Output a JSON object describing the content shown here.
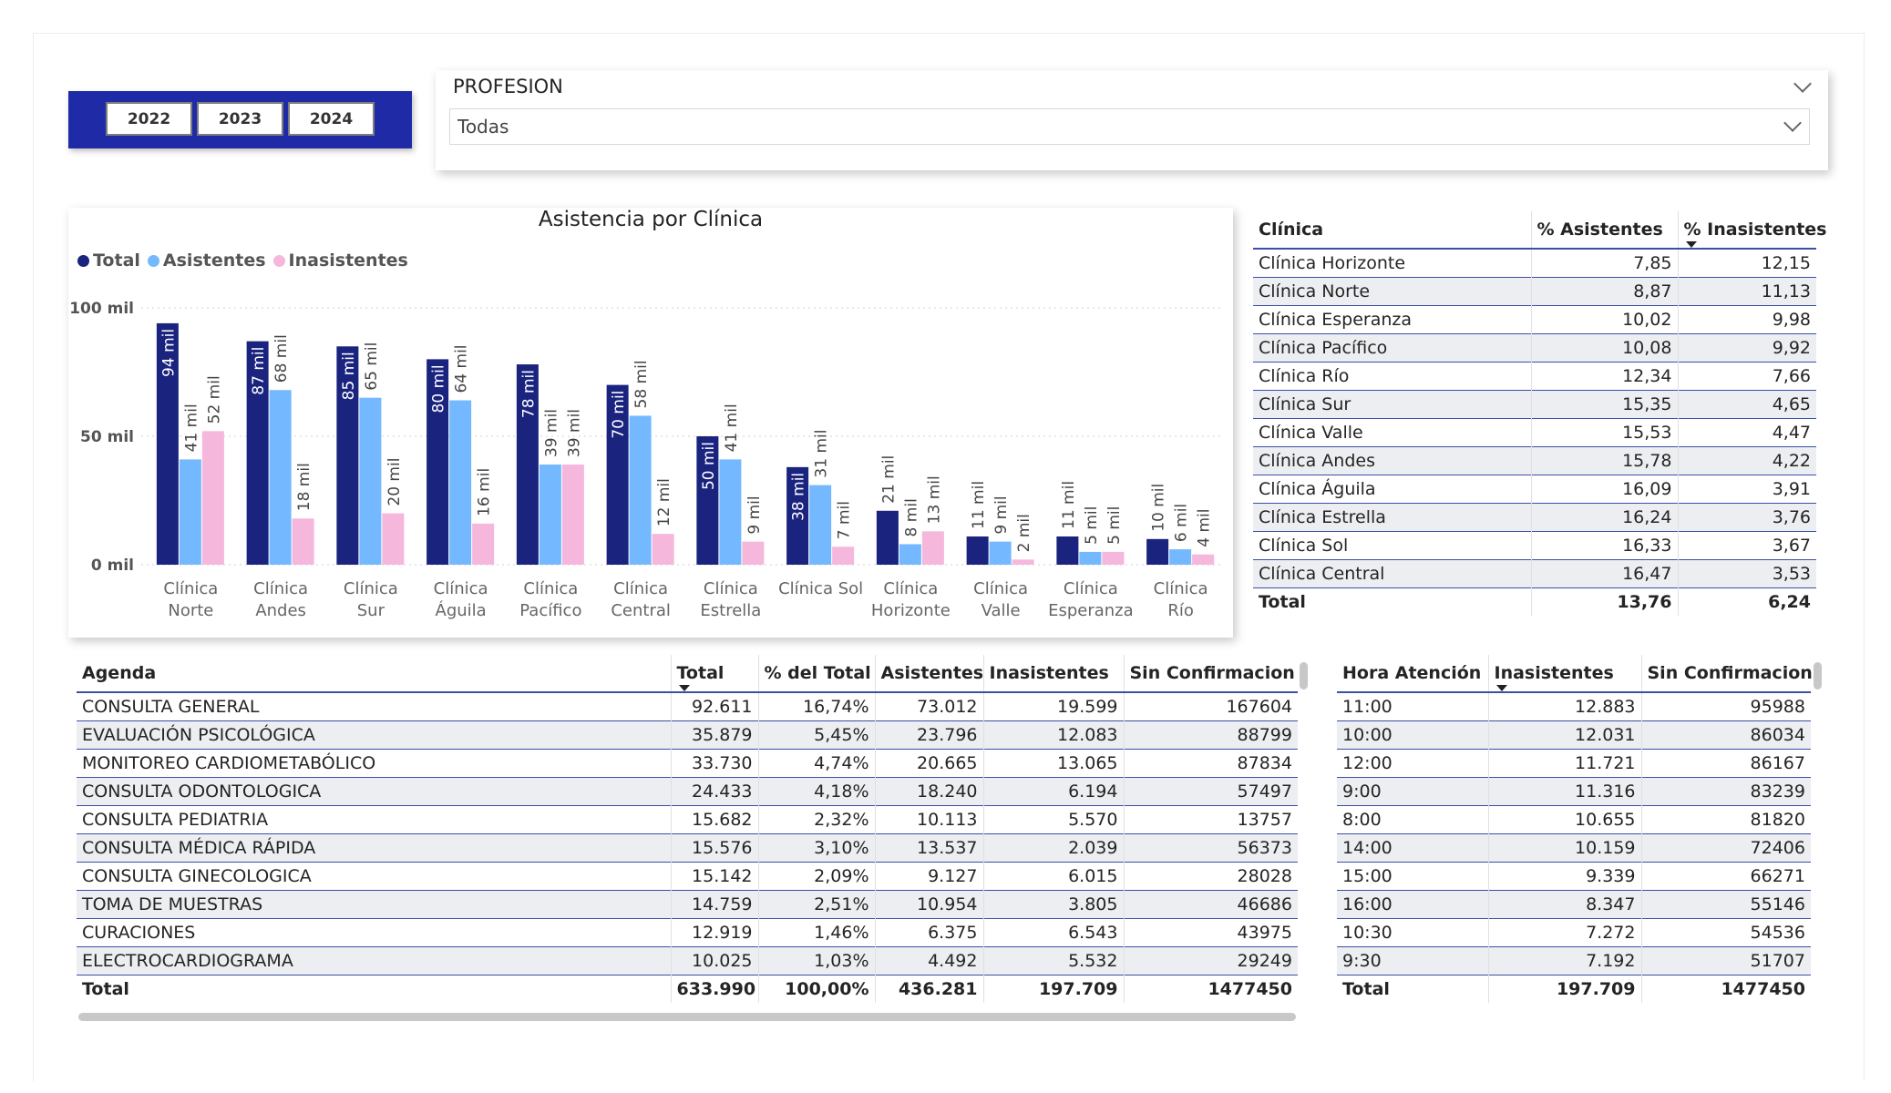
{
  "years": [
    "2022",
    "2023",
    "2024"
  ],
  "profesion": {
    "title": "PROFESION",
    "value": "Todas"
  },
  "chart": {
    "title": "Asistencia por Clínica",
    "legend": [
      "Total",
      "Asistentes",
      "Inasistentes"
    ],
    "colors": {
      "total": "#1a237e",
      "asistentes": "#74b9ff",
      "inasistentes": "#f5b7dc"
    },
    "y_ticks": [
      "100 mil",
      "50 mil",
      "0 mil"
    ]
  },
  "chart_data": {
    "type": "bar",
    "title": "Asistencia por Clínica",
    "categories": [
      [
        "Clínica",
        "Norte"
      ],
      [
        "Clínica",
        "Andes"
      ],
      [
        "Clínica",
        "Sur"
      ],
      [
        "Clínica",
        "Águila"
      ],
      [
        "Clínica",
        "Pacífico"
      ],
      [
        "Clínica",
        "Central"
      ],
      [
        "Clínica",
        "Estrella"
      ],
      [
        "Clínica Sol"
      ],
      [
        "Clínica",
        "Horizonte"
      ],
      [
        "Clínica",
        "Valle"
      ],
      [
        "Clínica",
        "Esperanza"
      ],
      [
        "Clínica",
        "Río"
      ]
    ],
    "series": [
      {
        "name": "Total",
        "values": [
          94,
          87,
          85,
          80,
          78,
          70,
          50,
          38,
          21,
          11,
          11,
          10
        ],
        "labels": [
          "94 mil",
          "87 mil",
          "85 mil",
          "80 mil",
          "78 mil",
          "70 mil",
          "50 mil",
          "38 mil",
          "21 mil",
          "11 mil",
          "11 mil",
          "10 mil"
        ]
      },
      {
        "name": "Asistentes",
        "values": [
          41,
          68,
          65,
          64,
          39,
          58,
          41,
          31,
          8,
          9,
          5,
          6
        ],
        "labels": [
          "41 mil",
          "68 mil",
          "65 mil",
          "64 mil",
          "39 mil",
          "58 mil",
          "41 mil",
          "31 mil",
          "8 mil",
          "9 mil",
          "5 mil",
          "6 mil"
        ]
      },
      {
        "name": "Inasistentes",
        "values": [
          52,
          18,
          20,
          16,
          39,
          12,
          9,
          7,
          13,
          2,
          5,
          4
        ],
        "labels": [
          "52 mil",
          "18 mil",
          "20 mil",
          "16 mil",
          "39 mil",
          "12 mil",
          "9 mil",
          "7 mil",
          "13 mil",
          "2 mil",
          "5 mil",
          "4 mil"
        ]
      }
    ],
    "ylim": [
      0,
      100
    ],
    "units": "mil",
    "grid": true,
    "legend_position": "top-left"
  },
  "clinica_table": {
    "headers": [
      "Clínica",
      "% Asistentes",
      "% Inasistentes"
    ],
    "rows": [
      [
        "Clínica Horizonte",
        "7,85",
        "12,15"
      ],
      [
        "Clínica Norte",
        "8,87",
        "11,13"
      ],
      [
        "Clínica Esperanza",
        "10,02",
        "9,98"
      ],
      [
        "Clínica Pacífico",
        "10,08",
        "9,92"
      ],
      [
        "Clínica Río",
        "12,34",
        "7,66"
      ],
      [
        "Clínica Sur",
        "15,35",
        "4,65"
      ],
      [
        "Clínica Valle",
        "15,53",
        "4,47"
      ],
      [
        "Clínica Andes",
        "15,78",
        "4,22"
      ],
      [
        "Clínica Águila",
        "16,09",
        "3,91"
      ],
      [
        "Clínica Estrella",
        "16,24",
        "3,76"
      ],
      [
        "Clínica Sol",
        "16,33",
        "3,67"
      ],
      [
        "Clínica Central",
        "16,47",
        "3,53"
      ]
    ],
    "total": [
      "Total",
      "13,76",
      "6,24"
    ]
  },
  "agenda_table": {
    "headers": [
      "Agenda",
      "Total",
      "% del Total",
      "Asistentes",
      "Inasistentes",
      "Sin Confirmacion"
    ],
    "rows": [
      [
        "CONSULTA GENERAL",
        "92.611",
        "16,74%",
        "73.012",
        "19.599",
        "167604"
      ],
      [
        "EVALUACIÓN PSICOLÓGICA",
        "35.879",
        "5,45%",
        "23.796",
        "12.083",
        "88799"
      ],
      [
        "MONITOREO CARDIOMETABÓLICO",
        "33.730",
        "4,74%",
        "20.665",
        "13.065",
        "87834"
      ],
      [
        "CONSULTA ODONTOLOGICA",
        "24.433",
        "4,18%",
        "18.240",
        "6.194",
        "57497"
      ],
      [
        "CONSULTA PEDIATRIA",
        "15.682",
        "2,32%",
        "10.113",
        "5.570",
        "13757"
      ],
      [
        "CONSULTA MÉDICA RÁPIDA",
        "15.576",
        "3,10%",
        "13.537",
        "2.039",
        "56373"
      ],
      [
        "CONSULTA GINECOLOGICA",
        "15.142",
        "2,09%",
        "9.127",
        "6.015",
        "28028"
      ],
      [
        "TOMA DE MUESTRAS",
        "14.759",
        "2,51%",
        "10.954",
        "3.805",
        "46686"
      ],
      [
        "CURACIONES",
        "12.919",
        "1,46%",
        "6.375",
        "6.543",
        "43975"
      ],
      [
        "ELECTROCARDIOGRAMA",
        "10.025",
        "1,03%",
        "4.492",
        "5.532",
        "29249"
      ]
    ],
    "total": [
      "Total",
      "633.990",
      "100,00%",
      "436.281",
      "197.709",
      "1477450"
    ]
  },
  "hora_table": {
    "headers": [
      "Hora Atención",
      "Inasistentes",
      "Sin Confirmacion"
    ],
    "rows": [
      [
        "11:00",
        "12.883",
        "95988"
      ],
      [
        "10:00",
        "12.031",
        "86034"
      ],
      [
        "12:00",
        "11.721",
        "86167"
      ],
      [
        "9:00",
        "11.316",
        "83239"
      ],
      [
        "8:00",
        "10.655",
        "81820"
      ],
      [
        "14:00",
        "10.159",
        "72406"
      ],
      [
        "15:00",
        "9.339",
        "66271"
      ],
      [
        "16:00",
        "8.347",
        "55146"
      ],
      [
        "10:30",
        "7.272",
        "54536"
      ],
      [
        "9:30",
        "7.192",
        "51707"
      ]
    ],
    "total": [
      "Total",
      "197.709",
      "1477450"
    ]
  }
}
